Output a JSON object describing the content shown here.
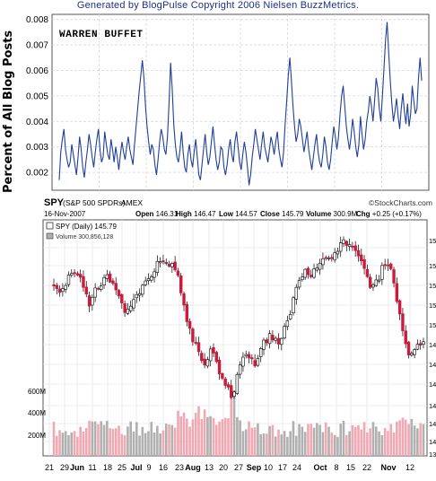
{
  "blogpulse": {
    "credit": "Generated by BlogPulse Copyright 2006 Nielsen BuzzMetrics.",
    "ylabel": "Percent of All Blog Posts",
    "title": "WARREN BUFFET"
  },
  "stockchart": {
    "ticker": "SPY",
    "fullname": "(S&P 500 SPDRs)",
    "exchange": "AMEX",
    "watermark": "©StockCharts.com",
    "date": "16-Nov-2007",
    "quote": [
      {
        "label": "Open",
        "value": "146.31"
      },
      {
        "label": "High",
        "value": "146.47"
      },
      {
        "label": "Low",
        "value": "144.57"
      },
      {
        "label": "Close",
        "value": "145.79"
      },
      {
        "label": "Volume",
        "value": "300.9M"
      },
      {
        "label": "Chg",
        "value": "+0.25 (+0.17%)"
      }
    ],
    "legend_price": "SPY (Daily) 145.79",
    "legend_volume": "Volume 300,856,128",
    "right_axis_partial": [
      "15",
      "15",
      "15",
      "15",
      "15",
      "14",
      "14",
      "14",
      "14",
      "14",
      "14",
      "13"
    ],
    "colors": {
      "up": "#ffffff",
      "down": "#cc1a3c",
      "volume_up": "#b0b0b0",
      "volume_down": "#f0a9b3",
      "buzz_line": "#1f3f9c"
    }
  },
  "chart_data": [
    {
      "type": "line",
      "title": "WARREN BUFFET",
      "ylabel": "Percent of All Blog Posts",
      "ylim": [
        0.0013,
        0.0082
      ],
      "yticks": [
        "0.002",
        "0.003",
        "0.004",
        "0.005",
        "0.006",
        "0.007",
        "0.008"
      ],
      "grid": true,
      "series": [
        {
          "values": [
            0.0017,
            0.0028,
            0.0033,
            0.0037,
            0.0029,
            0.0025,
            0.0022,
            0.0024,
            0.0031,
            0.0027,
            0.0023,
            0.0019,
            0.0026,
            0.0034,
            0.0029,
            0.0022,
            0.0018,
            0.0024,
            0.0029,
            0.0035,
            0.0031,
            0.0026,
            0.0022,
            0.0028,
            0.0033,
            0.0037,
            0.0029,
            0.0024,
            0.0026,
            0.0036,
            0.0031,
            0.0027,
            0.0025,
            0.0033,
            0.0029,
            0.0024,
            0.003,
            0.0026,
            0.0021,
            0.0027,
            0.0032,
            0.0028,
            0.0025,
            0.003,
            0.0034,
            0.0029,
            0.0026,
            0.0023,
            0.0031,
            0.0038,
            0.0045,
            0.0052,
            0.0058,
            0.0064,
            0.0057,
            0.0046,
            0.0038,
            0.0032,
            0.0027,
            0.0031,
            0.0029,
            0.0023,
            0.0019,
            0.0025,
            0.0032,
            0.0037,
            0.0034,
            0.0029,
            0.0027,
            0.0034,
            0.0047,
            0.0063,
            0.0053,
            0.0039,
            0.0031,
            0.0026,
            0.0024,
            0.0029,
            0.0036,
            0.0028,
            0.0022,
            0.002,
            0.0027,
            0.0031,
            0.0025,
            0.0022,
            0.0028,
            0.0033,
            0.0026,
            0.0019,
            0.0017,
            0.0023,
            0.0029,
            0.0035,
            0.0028,
            0.0023,
            0.0026,
            0.0032,
            0.0038,
            0.0031,
            0.0025,
            0.0021,
            0.0024,
            0.003,
            0.0029,
            0.0022,
            0.0019,
            0.0023,
            0.0029,
            0.0033,
            0.0027,
            0.0024,
            0.0032,
            0.0036,
            0.003,
            0.0024,
            0.0021,
            0.0027,
            0.0032,
            0.0028,
            0.0022,
            0.0015,
            0.0019,
            0.0026,
            0.0031,
            0.0037,
            0.0033,
            0.0029,
            0.0025,
            0.0031,
            0.0036,
            0.003,
            0.0027,
            0.0024,
            0.0029,
            0.0034,
            0.0031,
            0.0027,
            0.0032,
            0.0036,
            0.0029,
            0.0025,
            0.0022,
            0.0028,
            0.0039,
            0.0048,
            0.0058,
            0.0065,
            0.0056,
            0.0046,
            0.0038,
            0.0032,
            0.0035,
            0.0041,
            0.0038,
            0.0033,
            0.0028,
            0.0032,
            0.0036,
            0.0029,
            0.0025,
            0.0021,
            0.0026,
            0.0031,
            0.0035,
            0.0028,
            0.0024,
            0.0022,
            0.0027,
            0.0034,
            0.003,
            0.0024,
            0.0021,
            0.0025,
            0.0032,
            0.0038,
            0.0034,
            0.0029,
            0.0034,
            0.0043,
            0.005,
            0.0054,
            0.0046,
            0.0038,
            0.0033,
            0.0029,
            0.0034,
            0.0041,
            0.0036,
            0.003,
            0.0026,
            0.0031,
            0.0042,
            0.0035,
            0.0029,
            0.0033,
            0.004,
            0.0044,
            0.005,
            0.0046,
            0.004,
            0.0048,
            0.0057,
            0.0053,
            0.0045,
            0.004,
            0.005,
            0.0061,
            0.0072,
            0.0079,
            0.0067,
            0.0056,
            0.0047,
            0.004,
            0.0044,
            0.0049,
            0.0042,
            0.0037,
            0.0045,
            0.0051,
            0.0044,
            0.0039,
            0.0047,
            0.0038,
            0.0043,
            0.0054,
            0.0048,
            0.0043,
            0.0045,
            0.0057,
            0.0065,
            0.0056
          ]
        }
      ]
    },
    {
      "type": "candlestick",
      "title": "SPY (S&P 500 SPDRs)",
      "x_tick_labels": [
        "21",
        "29",
        "Jun",
        "11",
        "18",
        "25",
        "Jul",
        "9",
        "16",
        "23",
        "Aug",
        "13",
        "20",
        "27",
        "Sep",
        "10",
        "17",
        "24",
        "Oct",
        "8",
        "15",
        "22",
        "Nov",
        "12"
      ],
      "volume_axis_labels": [
        "600M",
        "400M",
        "200M"
      ],
      "volume_ylim": [
        0,
        750
      ],
      "grid": true
    }
  ]
}
